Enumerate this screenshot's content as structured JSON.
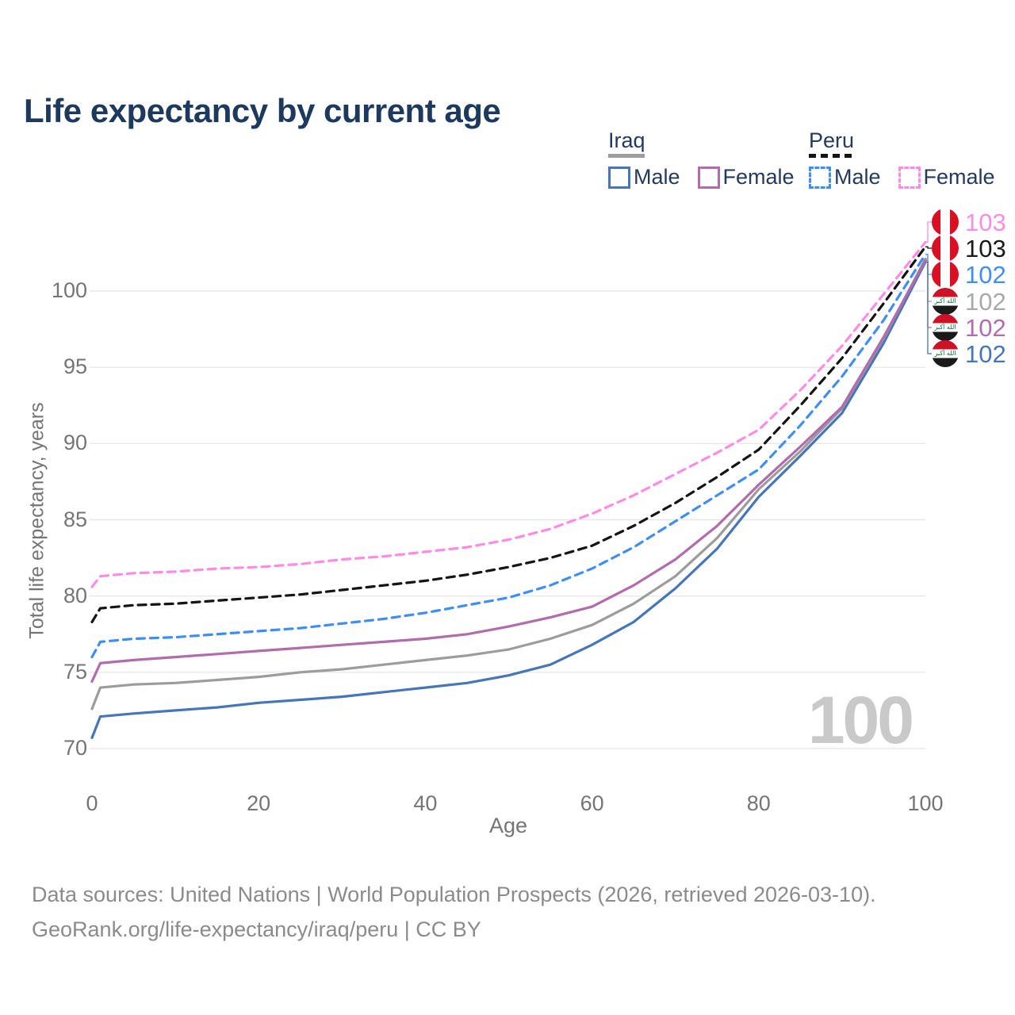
{
  "title": "Life expectancy by current age",
  "legend": {
    "groups": [
      {
        "name": "Iraq",
        "line_style": "solid",
        "line_color": "#9e9e9e",
        "items": [
          {
            "label": "Male",
            "color": "#4676b9",
            "dashed": false
          },
          {
            "label": "Female",
            "color": "#b26cac",
            "dashed": false
          }
        ]
      },
      {
        "name": "Peru",
        "line_style": "dashed",
        "line_color": "#141414",
        "items": [
          {
            "label": "Male",
            "color": "#3f8ef5",
            "dashed": true
          },
          {
            "label": "Female",
            "color": "#ff8ce3",
            "dashed": true
          }
        ]
      }
    ]
  },
  "axes": {
    "y": {
      "title": "Total life expectancy, years",
      "ticks": [
        70,
        75,
        80,
        85,
        90,
        95,
        100
      ],
      "range": [
        70,
        100
      ]
    },
    "x": {
      "title": "Age",
      "ticks": [
        0,
        20,
        40,
        60,
        80,
        100
      ],
      "range": [
        0,
        100
      ]
    }
  },
  "watermark": "100",
  "iraq_flag_text": "الله أكبر",
  "end_labels": [
    {
      "value": "103",
      "flag": "peru",
      "series": "Peru Female",
      "color": "#ff8ce3"
    },
    {
      "value": "103",
      "flag": "peru",
      "series": "Peru",
      "color": "#1a1a1a"
    },
    {
      "value": "102",
      "flag": "peru",
      "series": "Peru Male",
      "color": "#3f8ef5"
    },
    {
      "value": "102",
      "flag": "iraq",
      "series": "Iraq",
      "color": "#a9a9a9"
    },
    {
      "value": "102",
      "flag": "iraq",
      "series": "Iraq Female",
      "color": "#b26cac"
    },
    {
      "value": "102",
      "flag": "iraq",
      "series": "Iraq Male",
      "color": "#4676b9"
    }
  ],
  "footer": {
    "line1": "Data sources: United Nations | World Population Prospects (2026, retrieved 2026-03-10).",
    "line2": "GeoRank.org/life-expectancy/iraq/peru | CC BY"
  },
  "chart_data": {
    "type": "line",
    "title": "Life expectancy by current age",
    "xlabel": "Age",
    "ylabel": "Total life expectancy, years",
    "xlim": [
      0,
      100
    ],
    "ylim": [
      70,
      103.5
    ],
    "grid": "horizontal",
    "legend_position": "top-right",
    "x": [
      0,
      1,
      5,
      10,
      15,
      20,
      25,
      30,
      35,
      40,
      45,
      50,
      55,
      60,
      65,
      70,
      75,
      80,
      85,
      90,
      95,
      100
    ],
    "series": [
      {
        "name": "Iraq Male",
        "country": "Iraq",
        "sex": "Male",
        "color": "#4676b9",
        "dashed": false,
        "values": [
          70.7,
          72.1,
          72.3,
          72.5,
          72.7,
          73.0,
          73.2,
          73.4,
          73.7,
          74.0,
          74.3,
          74.8,
          75.5,
          76.8,
          78.3,
          80.5,
          83.1,
          86.5,
          89.2,
          92.0,
          96.6,
          101.9
        ]
      },
      {
        "name": "Iraq",
        "country": "Iraq",
        "sex": "Both",
        "color": "#9c9c9c",
        "dashed": false,
        "values": [
          72.6,
          74.0,
          74.2,
          74.3,
          74.5,
          74.7,
          75.0,
          75.2,
          75.5,
          75.8,
          76.1,
          76.5,
          77.2,
          78.1,
          79.5,
          81.3,
          83.8,
          87.0,
          89.5,
          92.3,
          96.9,
          102.1
        ]
      },
      {
        "name": "Iraq Female",
        "country": "Iraq",
        "sex": "Female",
        "color": "#b26cac",
        "dashed": false,
        "values": [
          74.4,
          75.6,
          75.8,
          76.0,
          76.2,
          76.4,
          76.6,
          76.8,
          77.0,
          77.2,
          77.5,
          78.0,
          78.6,
          79.3,
          80.7,
          82.4,
          84.6,
          87.3,
          89.8,
          92.4,
          97.0,
          102.0
        ]
      },
      {
        "name": "Peru Male",
        "country": "Peru",
        "sex": "Male",
        "color": "#3f8ef5",
        "dashed": true,
        "values": [
          76.0,
          77.0,
          77.2,
          77.3,
          77.5,
          77.7,
          77.9,
          78.2,
          78.5,
          78.9,
          79.4,
          79.9,
          80.7,
          81.8,
          83.2,
          84.9,
          86.6,
          88.3,
          91.2,
          94.4,
          98.1,
          102.4
        ]
      },
      {
        "name": "Peru",
        "country": "Peru",
        "sex": "Both",
        "color": "#141414",
        "dashed": true,
        "values": [
          78.3,
          79.2,
          79.4,
          79.5,
          79.7,
          79.9,
          80.1,
          80.4,
          80.7,
          81.0,
          81.4,
          81.9,
          82.5,
          83.3,
          84.6,
          86.1,
          87.8,
          89.6,
          92.5,
          95.6,
          99.2,
          102.9
        ]
      },
      {
        "name": "Peru Female",
        "country": "Peru",
        "sex": "Female",
        "color": "#ff8ce3",
        "dashed": true,
        "values": [
          80.6,
          81.3,
          81.5,
          81.6,
          81.8,
          81.9,
          82.1,
          82.4,
          82.6,
          82.9,
          83.2,
          83.7,
          84.4,
          85.4,
          86.6,
          88.0,
          89.4,
          90.9,
          93.5,
          96.4,
          99.8,
          103.2
        ]
      }
    ]
  }
}
